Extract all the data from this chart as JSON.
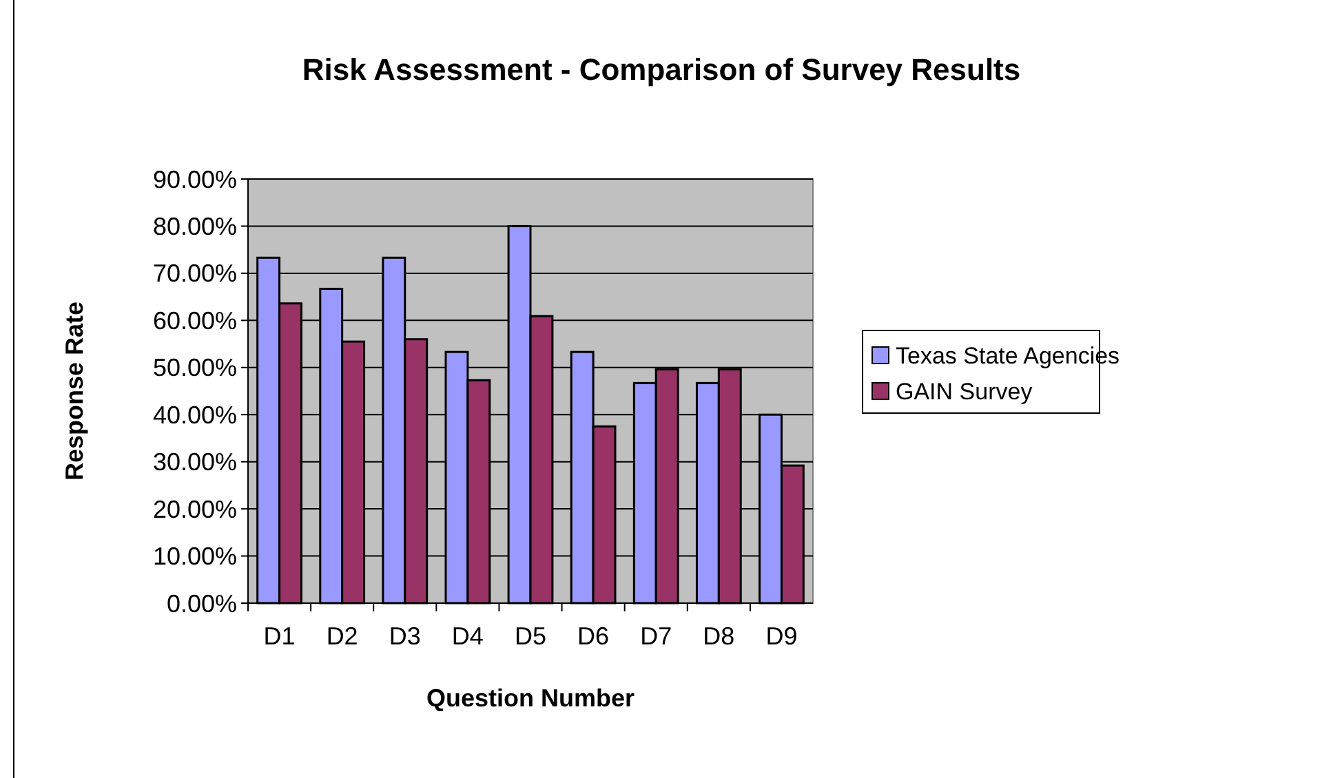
{
  "chart_data": {
    "type": "bar",
    "title": "Risk Assessment - Comparison of Survey Results",
    "xlabel": "Question Number",
    "ylabel": "Response Rate",
    "categories": [
      "D1",
      "D2",
      "D3",
      "D4",
      "D5",
      "D6",
      "D7",
      "D8",
      "D9"
    ],
    "series": [
      {
        "name": "Texas State Agencies",
        "color": "#9999ff",
        "values": [
          73.3,
          66.7,
          73.3,
          53.3,
          80,
          53.3,
          46.7,
          46.7,
          40
        ]
      },
      {
        "name": "GAIN Survey",
        "color": "#993366",
        "values": [
          63.6,
          55.5,
          56,
          47.3,
          60.9,
          37.5,
          49.6,
          49.6,
          29.2
        ]
      }
    ],
    "ylim": [
      0,
      90
    ],
    "yticks": [
      {
        "value": 0,
        "label": "0.00%"
      },
      {
        "value": 10,
        "label": "10.00%"
      },
      {
        "value": 20,
        "label": "20.00%"
      },
      {
        "value": 30,
        "label": "30.00%"
      },
      {
        "value": 40,
        "label": "40.00%"
      },
      {
        "value": 50,
        "label": "50.00%"
      },
      {
        "value": 60,
        "label": "60.00%"
      },
      {
        "value": 70,
        "label": "70.00%"
      },
      {
        "value": 80,
        "label": "80.00%"
      },
      {
        "value": 90,
        "label": "90.00%"
      }
    ],
    "grid": "y",
    "legend": "right"
  }
}
